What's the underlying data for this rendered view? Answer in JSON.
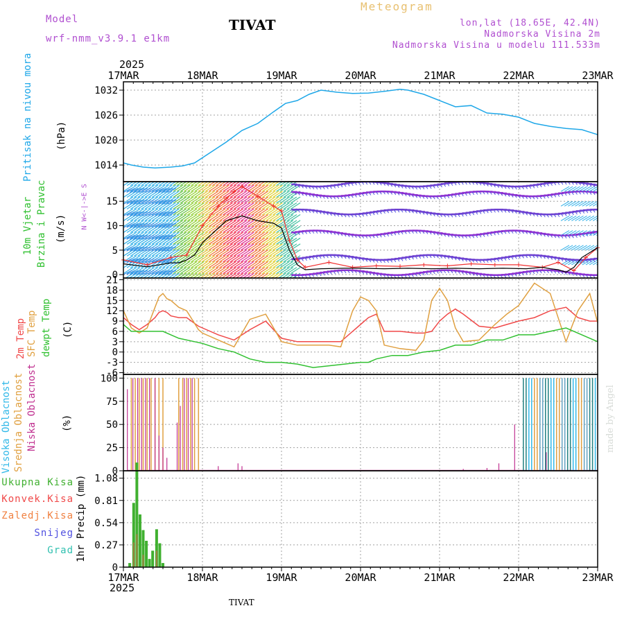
{
  "header": {
    "model_label": "Model",
    "model_name": "wrf-nmm_v3.9.1 e1km",
    "title": "TIVAT",
    "meteogram": "Meteogram",
    "lonlat": "lon,lat (18.65E, 42.4N)",
    "elevation": "Nadmorska Visina 2m",
    "model_elevation": "Nadmorska Visina u modelu 111.533m",
    "year_top": "2025",
    "year_bottom": "2025",
    "footer_station": "TIVAT",
    "credit": "made by Angel"
  },
  "colors": {
    "pressure": "#1ea7e8",
    "t2m": "#f04848",
    "tsfc": "#e0a040",
    "dewpt": "#30c030",
    "high_cloud": "#30b8e8",
    "mid_cloud": "#e0a040",
    "low_cloud": "#c03090",
    "total_precip": "#40b030",
    "conv_precip": "#f04848",
    "frozen_precip": "#f08040",
    "snow": "#5050e0",
    "grad": "#30c0b0",
    "wind_avg": "#000000",
    "gust": "#f03030"
  },
  "chart_data": [
    {
      "type": "line",
      "id": "pressure",
      "x_ticks": [
        "17MAR",
        "18MAR",
        "19MAR",
        "20MAR",
        "21MAR",
        "22MAR",
        "23MAR"
      ],
      "ylabel_name": "Pritisak na nivou mora",
      "ylabel_unit": "(hPa)",
      "ylim": [
        1010,
        1034
      ],
      "y_ticks": [
        1014,
        1020,
        1026,
        1032
      ],
      "grid": true,
      "series": [
        {
          "x": [
            0,
            0.1,
            0.25,
            0.4,
            0.6,
            0.75,
            0.9,
            1.1,
            1.3,
            1.5,
            1.7,
            1.9,
            2.05,
            2.2,
            2.35,
            2.5,
            2.7,
            2.9,
            3.1,
            3.3,
            3.5,
            3.6,
            3.8,
            4.0,
            4.2,
            4.4,
            4.6,
            4.8,
            5.0,
            5.2,
            5.4,
            5.6,
            5.8,
            6.0
          ],
          "y": [
            1014.5,
            1014,
            1013.5,
            1013.3,
            1013.5,
            1013.8,
            1014.5,
            1017,
            1019.5,
            1022.3,
            1024,
            1026.8,
            1028.8,
            1029.5,
            1031,
            1032,
            1031.5,
            1031.2,
            1031.3,
            1031.7,
            1032.2,
            1032,
            1031,
            1029.5,
            1028,
            1028.3,
            1026.5,
            1026.2,
            1025.5,
            1024,
            1023.3,
            1022.8,
            1022.5,
            1021.3
          ]
        }
      ]
    },
    {
      "type": "line",
      "id": "wind",
      "ylabel_name": "10m Vjetar",
      "ylabel_name2": "Brzina i Pravac",
      "ylabel_unit": "(m/s)",
      "ylim": [
        -0.7,
        19
      ],
      "y_ticks": [
        0,
        5,
        10,
        15
      ],
      "grid": true,
      "compass": "N W<-|->E S",
      "series": [
        {
          "name": "avg",
          "x": [
            0,
            0.3,
            0.6,
            0.7,
            0.8,
            0.9,
            1.0,
            1.1,
            1.2,
            1.3,
            1.5,
            1.7,
            1.9,
            2.0,
            2.1,
            2.2,
            2.3,
            2.5,
            2.8,
            3.0,
            3.3,
            3.6,
            3.9,
            4.2,
            4.5,
            4.8,
            5.1,
            5.3,
            5.4,
            5.5,
            5.6,
            5.7,
            5.8,
            6.0
          ],
          "y": [
            2.2,
            1.6,
            2.4,
            2.4,
            3.0,
            4.0,
            6.5,
            8.0,
            9.5,
            11.0,
            12.0,
            11.0,
            10.5,
            9.5,
            5.0,
            2.0,
            1.0,
            1.2,
            1.3,
            1.3,
            1.2,
            1.3,
            1.2,
            1.3,
            1.2,
            1.3,
            1.2,
            1.5,
            1.2,
            1.0,
            0.5,
            1.5,
            3.5,
            5.5
          ]
        },
        {
          "name": "gust",
          "x": [
            0,
            0.3,
            0.6,
            0.8,
            1.0,
            1.2,
            1.3,
            1.4,
            1.5,
            1.7,
            1.9,
            2.0,
            2.1,
            2.2,
            2.3,
            2.6,
            2.9,
            3.2,
            3.5,
            3.8,
            4.1,
            4.4,
            4.7,
            5.0,
            5.3,
            5.5,
            5.7,
            5.85,
            6.0
          ],
          "y": [
            3.0,
            2.0,
            3.5,
            4.0,
            10.0,
            14.0,
            15.5,
            17.0,
            18.0,
            16.0,
            14.0,
            13.0,
            7.0,
            3.0,
            1.5,
            2.5,
            1.5,
            1.8,
            1.7,
            2.0,
            1.8,
            2.2,
            2.0,
            2.0,
            1.5,
            2.5,
            0.8,
            3.5,
            5.5
          ]
        }
      ]
    },
    {
      "type": "line",
      "id": "temperature",
      "ylabel_t2m": "2m Temp",
      "ylabel_tsfc": "SFC Temp",
      "ylabel_dewpt": "dewpt Temp",
      "ylabel_unit": "(C)",
      "ylim": [
        -6.5,
        21.5
      ],
      "y_ticks": [
        -6,
        -3,
        0,
        3,
        6,
        9,
        12,
        15,
        18,
        21
      ],
      "grid": true,
      "series": [
        {
          "name": "t2m",
          "x": [
            0,
            0.1,
            0.2,
            0.3,
            0.4,
            0.45,
            0.5,
            0.55,
            0.6,
            0.7,
            0.8,
            0.95,
            1.0,
            1.2,
            1.4,
            1.6,
            1.8,
            2.0,
            2.2,
            2.4,
            2.6,
            2.75,
            2.9,
            3.0,
            3.1,
            3.2,
            3.3,
            3.5,
            3.7,
            3.8,
            3.9,
            4.0,
            4.1,
            4.2,
            4.3,
            4.5,
            4.7,
            4.85,
            5.0,
            5.2,
            5.4,
            5.6,
            5.75,
            5.9,
            6.0
          ],
          "y": [
            10,
            8,
            6.5,
            8,
            10,
            11.5,
            12,
            11.5,
            10.5,
            10,
            10,
            7.5,
            7,
            5,
            3.5,
            6.5,
            9,
            4,
            3,
            3,
            3,
            3,
            6,
            8,
            10,
            11,
            6,
            6,
            5.5,
            5.5,
            6,
            9,
            11,
            12.5,
            11,
            7.5,
            7,
            8,
            9,
            10,
            12,
            13,
            10,
            9,
            9
          ]
        },
        {
          "name": "tsfc",
          "x": [
            0,
            0.1,
            0.2,
            0.3,
            0.4,
            0.45,
            0.5,
            0.55,
            0.6,
            0.7,
            0.8,
            0.95,
            1.0,
            1.2,
            1.4,
            1.6,
            1.8,
            2.0,
            2.2,
            2.4,
            2.6,
            2.75,
            2.9,
            3.0,
            3.1,
            3.2,
            3.3,
            3.5,
            3.7,
            3.8,
            3.9,
            4.0,
            4.1,
            4.2,
            4.3,
            4.5,
            4.7,
            4.85,
            5.0,
            5.2,
            5.4,
            5.6,
            5.75,
            5.9,
            6.0
          ],
          "y": [
            12,
            7,
            5.5,
            7,
            13,
            16,
            17,
            15.5,
            15,
            13,
            12,
            6.5,
            5.5,
            3.5,
            1.5,
            9.5,
            11,
            3,
            2,
            2,
            2,
            1.5,
            12,
            16,
            15,
            12,
            2,
            1,
            0.5,
            3.5,
            15,
            18.5,
            15,
            7,
            3,
            3.5,
            8,
            11,
            13.5,
            20,
            17,
            3,
            12,
            17,
            8.5
          ]
        },
        {
          "name": "dewpt",
          "x": [
            0,
            0.1,
            0.3,
            0.5,
            0.6,
            0.7,
            0.9,
            1.0,
            1.2,
            1.4,
            1.6,
            1.8,
            2.0,
            2.2,
            2.4,
            2.6,
            2.8,
            3.0,
            3.1,
            3.2,
            3.4,
            3.6,
            3.8,
            4.0,
            4.2,
            4.4,
            4.6,
            4.8,
            5.0,
            5.2,
            5.4,
            5.6,
            5.8,
            6.0
          ],
          "y": [
            8,
            6,
            6,
            6,
            5,
            4,
            3,
            2.5,
            1,
            0,
            -2,
            -3,
            -3,
            -3.5,
            -4.5,
            -4,
            -3.5,
            -3,
            -3,
            -2,
            -1,
            -1,
            0,
            0.5,
            2,
            2,
            3.5,
            3.5,
            5,
            5,
            6,
            7,
            5,
            3
          ]
        }
      ]
    },
    {
      "type": "bar",
      "id": "clouds",
      "ylabel_high": "Visoka Oblacnost",
      "ylabel_mid": "Srednja Oblacnost",
      "ylabel_low": "Niska Oblacnost",
      "ylabel_unit": "(%)",
      "ylim": [
        0,
        104
      ],
      "y_ticks": [
        0,
        25,
        50,
        75,
        100
      ]
    },
    {
      "type": "bar",
      "id": "precip",
      "ylabel_unit": "1hr Precip (mm)",
      "ylim": [
        0,
        1.17
      ],
      "y_ticks": [
        0,
        0.27,
        0.54,
        0.81,
        1.08
      ],
      "y_tick_labels": [
        "0",
        "0.27",
        "0.54",
        "0.81",
        "1.08"
      ],
      "legend": [
        "Ukupna Kisa",
        "Konvek.Kisa",
        "Zaledj.Kisa",
        "Snijeg",
        "Grad"
      ],
      "series": [
        {
          "name": "total",
          "x": [
            0.08,
            0.13,
            0.17,
            0.21,
            0.25,
            0.29,
            0.33,
            0.37,
            0.42,
            0.46,
            0.5
          ],
          "values": [
            0.05,
            0.78,
            1.27,
            0.64,
            0.45,
            0.32,
            0.1,
            0.2,
            0.46,
            0.29,
            0.05
          ]
        },
        {
          "name": "conv",
          "x": [
            0.13,
            0.17,
            0.25,
            0.42
          ],
          "values": [
            0.3,
            0.4,
            0.15,
            0.2
          ]
        }
      ]
    }
  ]
}
